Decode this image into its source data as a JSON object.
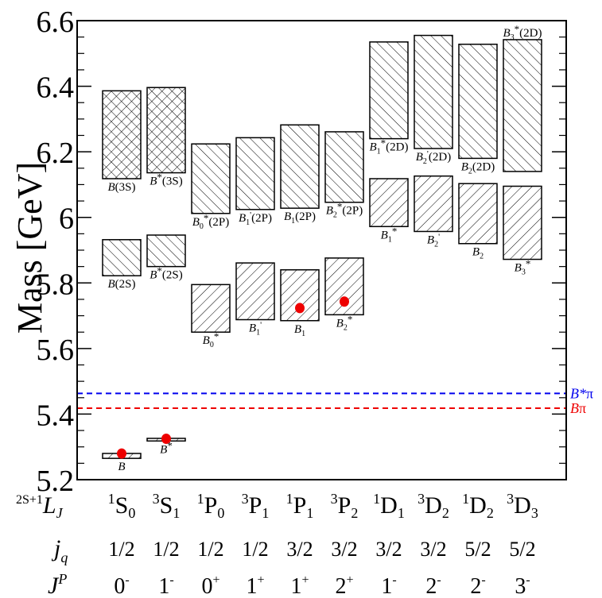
{
  "chart_data": {
    "type": "box",
    "ylabel": "Mass [GeV]",
    "ylim": [
      5.2,
      6.6
    ],
    "y_ticks": [
      "5.2",
      "5.4",
      "5.6",
      "5.8",
      "6",
      "6.2",
      "6.4",
      "6.6"
    ],
    "columns": [
      {
        "term": {
          "mult": "1",
          "L": "S",
          "J": "0"
        },
        "jq": "1/2",
        "jp": {
          "J": "0",
          "P": "-"
        }
      },
      {
        "term": {
          "mult": "3",
          "L": "S",
          "J": "1"
        },
        "jq": "1/2",
        "jp": {
          "J": "1",
          "P": "-"
        }
      },
      {
        "term": {
          "mult": "1",
          "L": "P",
          "J": "0"
        },
        "jq": "1/2",
        "jp": {
          "J": "0",
          "P": "+"
        }
      },
      {
        "term": {
          "mult": "3",
          "L": "P",
          "J": "1"
        },
        "jq": "1/2",
        "jp": {
          "J": "1",
          "P": "+"
        }
      },
      {
        "term": {
          "mult": "1",
          "L": "P",
          "J": "1"
        },
        "jq": "3/2",
        "jp": {
          "J": "1",
          "P": "+"
        }
      },
      {
        "term": {
          "mult": "3",
          "L": "P",
          "J": "2"
        },
        "jq": "3/2",
        "jp": {
          "J": "2",
          "P": "+"
        }
      },
      {
        "term": {
          "mult": "1",
          "L": "D",
          "J": "1"
        },
        "jq": "3/2",
        "jp": {
          "J": "1",
          "P": "-"
        }
      },
      {
        "term": {
          "mult": "3",
          "L": "D",
          "J": "2"
        },
        "jq": "3/2",
        "jp": {
          "J": "2",
          "P": "-"
        }
      },
      {
        "term": {
          "mult": "1",
          "L": "D",
          "J": "2"
        },
        "jq": "5/2",
        "jp": {
          "J": "2",
          "P": "-"
        }
      },
      {
        "term": {
          "mult": "3",
          "L": "D",
          "J": "3"
        },
        "jq": "5/2",
        "jp": {
          "J": "3",
          "P": "-"
        }
      }
    ],
    "row_labels": {
      "term": {
        "pre": "2S+1",
        "main": "L",
        "sub": "J"
      },
      "jq": {
        "main": "j",
        "sub": "q"
      },
      "jp": {
        "main": "J",
        "sup": "P"
      }
    },
    "boxes": [
      {
        "col": 0,
        "low": 5.265,
        "high": 5.28,
        "pattern": "diag",
        "label": {
          "base": "B",
          "sub": "",
          "prime": "",
          "star": "",
          "tail": ""
        },
        "label_pos": "below"
      },
      {
        "col": 1,
        "low": 5.318,
        "high": 5.326,
        "pattern": "diag",
        "label": {
          "base": "B",
          "sub": "",
          "prime": "",
          "star": "*",
          "tail": ""
        },
        "label_pos": "below"
      },
      {
        "col": 0,
        "low": 5.822,
        "high": 5.932,
        "pattern": "back",
        "label": {
          "base": "B",
          "sub": "",
          "prime": "",
          "star": "",
          "tail": "(2S)"
        },
        "label_pos": "below"
      },
      {
        "col": 1,
        "low": 5.85,
        "high": 5.946,
        "pattern": "back",
        "label": {
          "base": "B",
          "sub": "",
          "prime": "",
          "star": "*",
          "tail": "(2S)"
        },
        "label_pos": "below"
      },
      {
        "col": 0,
        "low": 6.118,
        "high": 6.386,
        "pattern": "cross",
        "label": {
          "base": "B",
          "sub": "",
          "prime": "",
          "star": "",
          "tail": "(3S)"
        },
        "label_pos": "below"
      },
      {
        "col": 1,
        "low": 6.136,
        "high": 6.396,
        "pattern": "cross",
        "label": {
          "base": "B",
          "sub": "",
          "prime": "",
          "star": "*",
          "tail": "(3S)"
        },
        "label_pos": "below"
      },
      {
        "col": 2,
        "low": 5.65,
        "high": 5.795,
        "pattern": "diag",
        "label": {
          "base": "B",
          "sub": "0",
          "prime": "",
          "star": "*",
          "tail": ""
        },
        "label_pos": "below"
      },
      {
        "col": 3,
        "low": 5.688,
        "high": 5.861,
        "pattern": "diag",
        "label": {
          "base": "B",
          "sub": "1",
          "prime": "'",
          "star": "",
          "tail": ""
        },
        "label_pos": "below"
      },
      {
        "col": 4,
        "low": 5.685,
        "high": 5.84,
        "pattern": "diag",
        "label": {
          "base": "B",
          "sub": "1",
          "prime": "",
          "star": "",
          "tail": ""
        },
        "label_pos": "below"
      },
      {
        "col": 5,
        "low": 5.703,
        "high": 5.876,
        "pattern": "diag",
        "label": {
          "base": "B",
          "sub": "2",
          "prime": "",
          "star": "*",
          "tail": ""
        },
        "label_pos": "below"
      },
      {
        "col": 2,
        "low": 6.012,
        "high": 6.224,
        "pattern": "back",
        "label": {
          "base": "B",
          "sub": "0",
          "prime": "",
          "star": "*",
          "tail": "(2P)"
        },
        "label_pos": "below"
      },
      {
        "col": 3,
        "low": 6.024,
        "high": 6.243,
        "pattern": "back",
        "label": {
          "base": "B",
          "sub": "1",
          "prime": "'",
          "star": "",
          "tail": "(2P)"
        },
        "label_pos": "below"
      },
      {
        "col": 4,
        "low": 6.028,
        "high": 6.282,
        "pattern": "back",
        "label": {
          "base": "B",
          "sub": "1",
          "prime": "",
          "star": "",
          "tail": "(2P)"
        },
        "label_pos": "below"
      },
      {
        "col": 5,
        "low": 6.046,
        "high": 6.261,
        "pattern": "back",
        "label": {
          "base": "B",
          "sub": "2",
          "prime": "",
          "star": "*",
          "tail": "(2P)"
        },
        "label_pos": "below"
      },
      {
        "col": 6,
        "low": 5.972,
        "high": 6.118,
        "pattern": "diag",
        "label": {
          "base": "B",
          "sub": "1",
          "prime": "",
          "star": "*",
          "tail": ""
        },
        "label_pos": "below"
      },
      {
        "col": 7,
        "low": 5.957,
        "high": 6.126,
        "pattern": "diag",
        "label": {
          "base": "B",
          "sub": "2",
          "prime": "'",
          "star": "",
          "tail": ""
        },
        "label_pos": "below"
      },
      {
        "col": 8,
        "low": 5.92,
        "high": 6.103,
        "pattern": "diag",
        "label": {
          "base": "B",
          "sub": "2",
          "prime": "",
          "star": "",
          "tail": ""
        },
        "label_pos": "below"
      },
      {
        "col": 9,
        "low": 5.872,
        "high": 6.095,
        "pattern": "diag",
        "label": {
          "base": "B",
          "sub": "3",
          "prime": "",
          "star": "*",
          "tail": ""
        },
        "label_pos": "below"
      },
      {
        "col": 6,
        "low": 6.24,
        "high": 6.535,
        "pattern": "back",
        "label": {
          "base": "B",
          "sub": "1",
          "prime": "",
          "star": "*",
          "tail": "(2D)"
        },
        "label_pos": "below"
      },
      {
        "col": 7,
        "low": 6.21,
        "high": 6.555,
        "pattern": "back",
        "label": {
          "base": "B",
          "sub": "2",
          "prime": "'",
          "star": "",
          "tail": "(2D)"
        },
        "label_pos": "below"
      },
      {
        "col": 8,
        "low": 6.18,
        "high": 6.528,
        "pattern": "back",
        "label": {
          "base": "B",
          "sub": "2",
          "prime": "",
          "star": "",
          "tail": "(2D)"
        },
        "label_pos": "below"
      },
      {
        "col": 9,
        "low": 6.14,
        "high": 6.542,
        "pattern": "back",
        "label": {
          "base": "B",
          "sub": "3",
          "prime": "",
          "star": "*",
          "tail": "(2D)"
        },
        "label_pos": "above"
      }
    ],
    "points": [
      {
        "col": 0,
        "mass": 5.2796
      },
      {
        "col": 1,
        "mass": 5.3247
      },
      {
        "col": 4,
        "mass": 5.7234
      },
      {
        "col": 5,
        "mass": 5.7432
      }
    ],
    "thresholds": [
      {
        "label": "B*π",
        "mass": 5.463,
        "color": "#0000ee"
      },
      {
        "label": "Bπ",
        "mass": 5.418,
        "color": "#ee0000"
      }
    ],
    "colors": {
      "point": "#ee0000",
      "frame": "#000000"
    }
  }
}
